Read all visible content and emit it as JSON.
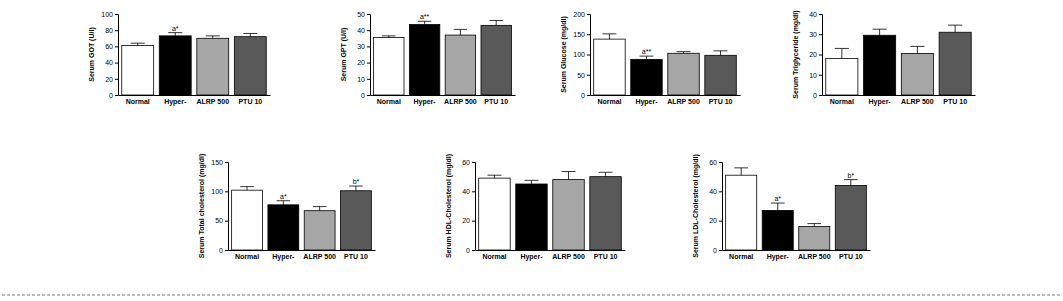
{
  "chart_data": [
    {
      "type": "bar",
      "y_label": "Serum GOT (U/l)",
      "categories": [
        "Normal",
        "Hyper-",
        "ALRP 500",
        "PTU 10"
      ],
      "values": [
        61,
        73,
        70,
        72
      ],
      "errors": [
        3,
        4,
        3,
        4
      ],
      "colors": [
        "#ffffff",
        "#000000",
        "#a6a6a6",
        "#595959"
      ],
      "annotations": [
        null,
        "a*",
        null,
        null
      ],
      "ylim": [
        0,
        100
      ],
      "yticks": [
        0,
        20,
        40,
        60,
        80,
        100
      ]
    },
    {
      "type": "bar",
      "y_label": "Serum GPT (U/l)",
      "categories": [
        "Normal",
        "Hyper-",
        "ALRP 500",
        "PTU 10"
      ],
      "values": [
        35.5,
        43.5,
        37,
        43
      ],
      "errors": [
        1,
        2,
        3.5,
        3
      ],
      "colors": [
        "#ffffff",
        "#000000",
        "#a6a6a6",
        "#595959"
      ],
      "annotations": [
        null,
        "a**",
        null,
        null
      ],
      "ylim": [
        0,
        50
      ],
      "yticks": [
        0,
        10,
        20,
        30,
        40,
        50
      ]
    },
    {
      "type": "bar",
      "y_label": "Serum Glucose (mg/dl)",
      "categories": [
        "Normal",
        "Hyper-",
        "ALRP 500",
        "PTU 10"
      ],
      "values": [
        138,
        88,
        103,
        98
      ],
      "errors": [
        13,
        8,
        4,
        11
      ],
      "colors": [
        "#ffffff",
        "#000000",
        "#a6a6a6",
        "#595959"
      ],
      "annotations": [
        null,
        "a**",
        null,
        null
      ],
      "ylim": [
        0,
        200
      ],
      "yticks": [
        0,
        50,
        100,
        150,
        200
      ]
    },
    {
      "type": "bar",
      "y_label": "Serum Triglyceride (mg/dl)",
      "categories": [
        "Normal",
        "Hyper-",
        "ALRP 500",
        "PTU 10"
      ],
      "values": [
        18,
        29.5,
        20.5,
        31
      ],
      "errors": [
        5,
        3,
        3.5,
        3.5
      ],
      "colors": [
        "#ffffff",
        "#000000",
        "#a6a6a6",
        "#595959"
      ],
      "ylim": [
        0,
        40
      ],
      "yticks": [
        0,
        10,
        20,
        30,
        40
      ]
    },
    {
      "type": "bar",
      "y_label": "Serum Total cholesterol (mg/dl)",
      "categories": [
        "Normal",
        "Hyper-",
        "ALRP 500",
        "PTU 10"
      ],
      "values": [
        102,
        77,
        67,
        101
      ],
      "errors": [
        6,
        7,
        7,
        8
      ],
      "colors": [
        "#ffffff",
        "#000000",
        "#a6a6a6",
        "#595959"
      ],
      "annotations": [
        null,
        "a*",
        null,
        "b*"
      ],
      "ylim": [
        0,
        150
      ],
      "yticks": [
        0,
        50,
        100,
        150
      ]
    },
    {
      "type": "bar",
      "y_label": "Serum HDL-Cholesterol (mg/dl)",
      "categories": [
        "Normal",
        "Hyper-",
        "ALRP 500",
        "PTU 10"
      ],
      "values": [
        49,
        45,
        48,
        50
      ],
      "errors": [
        2,
        2.5,
        5.5,
        3
      ],
      "colors": [
        "#ffffff",
        "#000000",
        "#a6a6a6",
        "#595959"
      ],
      "ylim": [
        0,
        60
      ],
      "yticks": [
        0,
        20,
        40,
        60
      ]
    },
    {
      "type": "bar",
      "y_label": "Serum LDL-Cholesterol (mg/dl)",
      "categories": [
        "Normal",
        "Hyper-",
        "ALRP 500",
        "PTU 10"
      ],
      "values": [
        51,
        27,
        16,
        44
      ],
      "errors": [
        5,
        5,
        2,
        4
      ],
      "colors": [
        "#ffffff",
        "#000000",
        "#a6a6a6",
        "#595959"
      ],
      "annotations": [
        null,
        "a*",
        null,
        "b*"
      ],
      "ylim": [
        0,
        60
      ],
      "yticks": [
        0,
        20,
        40,
        60
      ]
    }
  ]
}
